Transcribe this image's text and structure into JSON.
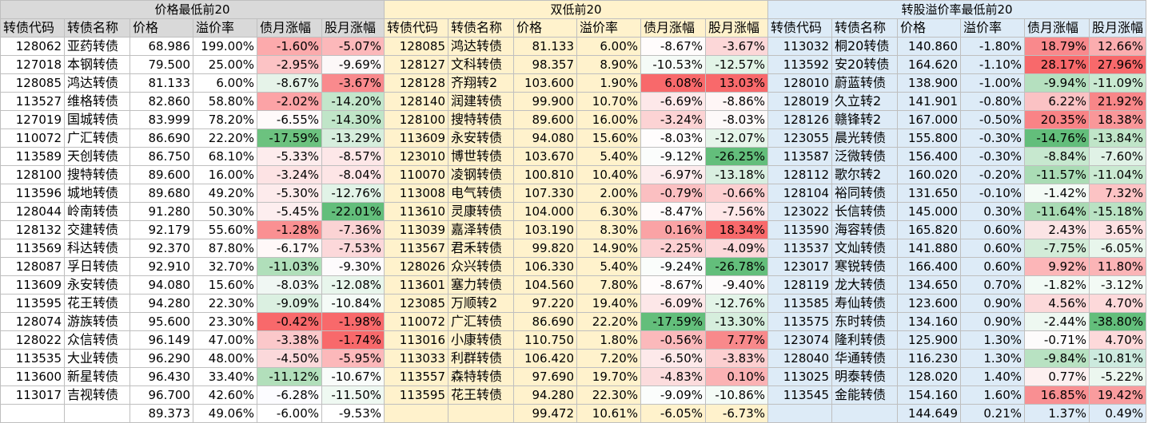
{
  "sections": [
    {
      "title": "价格最低前20"
    },
    {
      "title": "双低前20"
    },
    {
      "title": "转股溢价率最低前20"
    }
  ],
  "headers": [
    "转债代码",
    "转债名称",
    "价格",
    "溢价率",
    "债月涨幅",
    "股月涨幅"
  ],
  "colors": {
    "green_strong": "#63be7b",
    "red_strong": "#f8696b",
    "sec1_bg": "#d9d9d9",
    "sec2_bg": "#fff2cc",
    "sec3_bg": "#ddebf7"
  },
  "tables": [
    {
      "rows": [
        [
          "128062",
          "亚药转债",
          "68.986",
          "199.00%",
          "-1.60%",
          "-5.07%"
        ],
        [
          "127018",
          "本钢转债",
          "79.500",
          "25.00%",
          "-2.95%",
          "-9.69%"
        ],
        [
          "128085",
          "鸿达转债",
          "81.133",
          "6.00%",
          "-8.67%",
          "-3.67%"
        ],
        [
          "113527",
          "维格转债",
          "82.860",
          "58.80%",
          "-2.02%",
          "-14.20%"
        ],
        [
          "127019",
          "国城转债",
          "83.999",
          "78.20%",
          "-6.55%",
          "-14.30%"
        ],
        [
          "110072",
          "广汇转债",
          "86.690",
          "22.20%",
          "-17.59%",
          "-13.29%"
        ],
        [
          "113589",
          "天创转债",
          "86.750",
          "68.10%",
          "-5.33%",
          "-8.57%"
        ],
        [
          "128100",
          "搜特转债",
          "89.600",
          "16.00%",
          "-3.24%",
          "-8.04%"
        ],
        [
          "113596",
          "城地转债",
          "89.680",
          "49.20%",
          "-5.30%",
          "-12.76%"
        ],
        [
          "128044",
          "岭南转债",
          "91.280",
          "50.30%",
          "-5.45%",
          "-22.01%"
        ],
        [
          "128132",
          "交建转债",
          "92.179",
          "55.60%",
          "-1.28%",
          "-7.36%"
        ],
        [
          "113569",
          "科达转债",
          "92.370",
          "87.80%",
          "-6.17%",
          "-7.53%"
        ],
        [
          "128087",
          "孚日转债",
          "92.910",
          "32.70%",
          "-11.03%",
          "-9.30%"
        ],
        [
          "113609",
          "永安转债",
          "94.080",
          "15.60%",
          "-8.03%",
          "-12.08%"
        ],
        [
          "113595",
          "花王转债",
          "94.280",
          "22.30%",
          "-9.09%",
          "-10.84%"
        ],
        [
          "128074",
          "游族转债",
          "95.600",
          "23.30%",
          "-0.42%",
          "-1.98%"
        ],
        [
          "128022",
          "众信转债",
          "96.149",
          "47.00%",
          "-3.38%",
          "-1.74%"
        ],
        [
          "113535",
          "大业转债",
          "96.290",
          "48.00%",
          "-4.50%",
          "-5.95%"
        ],
        [
          "113600",
          "新星转债",
          "96.430",
          "33.40%",
          "-11.12%",
          "-10.67%"
        ],
        [
          "113017",
          "吉视转债",
          "96.700",
          "42.60%",
          "-6.28%",
          "-11.50%"
        ]
      ],
      "summary": [
        "",
        "",
        "89.373",
        "49.06%",
        "-6.00%",
        "-9.53%"
      ],
      "bond_colors": [
        "#fcaaac",
        "#fcc3c5",
        "#e6f3e9",
        "#fca3a6",
        "#fffafa",
        "#6cc27f",
        "#fdeced",
        "#fde3e4",
        "#fdebec",
        "#fdeeef",
        "#fa9092",
        "#fff8f8",
        "#b0dfba",
        "#f0f7f3",
        "#dbf0e1",
        "#f8696b",
        "#fbc8ca",
        "#fbd9db",
        "#b2dfbb",
        "#fcfcff"
      ],
      "stock_colors": [
        "#fcb8ba",
        "#fcf8f8",
        "#f98a8d",
        "#c3e6cb",
        "#c0e5c8",
        "#d6eedd",
        "#fde7e8",
        "#fde5e6",
        "#e1f3e7",
        "#63be7b",
        "#fbd3d4",
        "#fcd8da",
        "#fdfbfc",
        "#e8f6ec",
        "#f5fbf7",
        "#f8696b",
        "#f8696b",
        "#fcb8ba",
        "#f9fcfa",
        "#eff9f2"
      ]
    },
    {
      "rows": [
        [
          "128085",
          "鸿达转债",
          "81.133",
          "6.00%",
          "-8.67%",
          "-3.67%"
        ],
        [
          "128127",
          "文科转债",
          "98.357",
          "8.90%",
          "-10.53%",
          "-12.57%"
        ],
        [
          "128128",
          "齐翔转2",
          "103.600",
          "1.90%",
          "6.08%",
          "13.03%"
        ],
        [
          "128140",
          "润建转债",
          "99.900",
          "10.70%",
          "-6.69%",
          "-8.86%"
        ],
        [
          "128100",
          "搜特转债",
          "89.600",
          "16.00%",
          "-3.24%",
          "-8.03%"
        ],
        [
          "113609",
          "永安转债",
          "94.080",
          "15.60%",
          "-8.03%",
          "-12.07%"
        ],
        [
          "123010",
          "博世转债",
          "103.670",
          "5.40%",
          "-9.12%",
          "-26.25%"
        ],
        [
          "110070",
          "凌钢转债",
          "100.810",
          "10.40%",
          "-6.97%",
          "-13.18%"
        ],
        [
          "113008",
          "电气转债",
          "107.330",
          "2.00%",
          "-0.79%",
          "-0.66%"
        ],
        [
          "113610",
          "灵康转债",
          "104.000",
          "6.30%",
          "-8.47%",
          "-7.56%"
        ],
        [
          "113039",
          "嘉泽转债",
          "103.190",
          "8.30%",
          "0.16%",
          "18.34%"
        ],
        [
          "113567",
          "君禾转债",
          "99.820",
          "14.90%",
          "-2.25%",
          "-4.09%"
        ],
        [
          "128026",
          "众兴转债",
          "106.330",
          "5.40%",
          "-9.24%",
          "-26.78%"
        ],
        [
          "113601",
          "塞力转债",
          "104.560",
          "7.80%",
          "-8.67%",
          "-9.40%"
        ],
        [
          "123085",
          "万顺转2",
          "97.220",
          "19.40%",
          "-6.09%",
          "-12.76%"
        ],
        [
          "110072",
          "广汇转债",
          "86.690",
          "22.20%",
          "-17.59%",
          "-13.30%"
        ],
        [
          "113016",
          "小康转债",
          "110.750",
          "1.80%",
          "-0.56%",
          "7.77%"
        ],
        [
          "113033",
          "利群转债",
          "106.420",
          "7.20%",
          "-6.50%",
          "-3.83%"
        ],
        [
          "113557",
          "森特转债",
          "97.690",
          "19.70%",
          "-4.83%",
          "0.10%"
        ],
        [
          "113595",
          "花王转债",
          "94.280",
          "22.30%",
          "-9.09%",
          "-10.86%"
        ]
      ],
      "summary": [
        "",
        "",
        "99.472",
        "10.61%",
        "-6.05%",
        "-6.73%"
      ],
      "bond_colors": [
        "#fffcfc",
        "#f5fbf7",
        "#f8696b",
        "#fde8e9",
        "#fcd3d4",
        "#fffdfd",
        "#fbfdfc",
        "#fdeced",
        "#fbbfc1",
        "#fffbfb",
        "#faa3a5",
        "#fcd0d2",
        "#fafdfb",
        "#fffcfc",
        "#fde7e8",
        "#63be7b",
        "#fbb9bb",
        "#fde9ea",
        "#fcdcdd",
        "#fbfdfc"
      ],
      "stock_colors": [
        "#fcd7d8",
        "#e2f4e7",
        "#f8696b",
        "#fef6f6",
        "#fdf9f9",
        "#e6f5ea",
        "#63be7b",
        "#d9efe0",
        "#fccfd0",
        "#fee7e8",
        "#f8696b",
        "#fcd8da",
        "#63be7b",
        "#fdfbfb",
        "#e3f4e8",
        "#d6eedd",
        "#f8898b",
        "#fccfd0",
        "#fbb2b4",
        "#f4fbf6"
      ]
    },
    {
      "rows": [
        [
          "113032",
          "桐20转债",
          "140.860",
          "-1.80%",
          "18.79%",
          "12.66%"
        ],
        [
          "113592",
          "安20转债",
          "164.620",
          "-1.10%",
          "28.17%",
          "27.96%"
        ],
        [
          "128010",
          "蔚蓝转债",
          "138.900",
          "-1.00%",
          "-9.94%",
          "-11.09%"
        ],
        [
          "128019",
          "久立转2",
          "141.901",
          "-0.80%",
          "6.22%",
          "21.92%"
        ],
        [
          "128126",
          "赣锋转2",
          "167.000",
          "-0.50%",
          "20.35%",
          "18.38%"
        ],
        [
          "123055",
          "晨光转债",
          "155.800",
          "-0.30%",
          "-14.76%",
          "-13.84%"
        ],
        [
          "113587",
          "泛微转债",
          "156.400",
          "-0.30%",
          "-8.84%",
          "-7.60%"
        ],
        [
          "128112",
          "歌尔转2",
          "160.020",
          "-0.20%",
          "-11.57%",
          "-11.04%"
        ],
        [
          "128104",
          "裕同转债",
          "131.650",
          "-0.10%",
          "-1.42%",
          "7.32%"
        ],
        [
          "123022",
          "长信转债",
          "145.000",
          "0.30%",
          "-11.64%",
          "-15.18%"
        ],
        [
          "113590",
          "海容转债",
          "165.820",
          "0.60%",
          "2.43%",
          "3.65%"
        ],
        [
          "113537",
          "文灿转债",
          "141.880",
          "0.60%",
          "-7.75%",
          "-6.05%"
        ],
        [
          "123017",
          "寒锐转债",
          "166.400",
          "0.60%",
          "9.92%",
          "11.80%"
        ],
        [
          "128119",
          "龙大转债",
          "134.650",
          "0.70%",
          "-1.82%",
          "-3.12%"
        ],
        [
          "113585",
          "寿仙转债",
          "123.600",
          "0.90%",
          "4.56%",
          "4.70%"
        ],
        [
          "113575",
          "东时转债",
          "134.160",
          "0.90%",
          "-2.44%",
          "-38.80%"
        ],
        [
          "123074",
          "隆利转债",
          "125.900",
          "1.30%",
          "-0.71%",
          "4.70%"
        ],
        [
          "128040",
          "华通转债",
          "116.230",
          "1.30%",
          "-9.84%",
          "-10.81%"
        ],
        [
          "113025",
          "明泰转债",
          "128.020",
          "1.40%",
          "0.77%",
          "-5.22%"
        ],
        [
          "113545",
          "金能转债",
          "154.160",
          "1.60%",
          "16.85%",
          "19.42%"
        ]
      ],
      "summary": [
        "",
        "",
        "144.649",
        "0.21%",
        "1.37%",
        "0.49%"
      ],
      "bond_colors": [
        "#f9898c",
        "#f8696b",
        "#b5e0bf",
        "#fbc2c4",
        "#f98386",
        "#63be7b",
        "#c7e8cf",
        "#aadcb5",
        "#f4fbf6",
        "#a9dbb4",
        "#fbe4e5",
        "#d2ecd8",
        "#fcb6b8",
        "#f2faf5",
        "#fcd9da",
        "#eef8f1",
        "#fdfbfb",
        "#b8e2c2",
        "#fdf0f0",
        "#f98f92"
      ],
      "stock_colors": [
        "#fbadaf",
        "#f8696b",
        "#c9e9d1",
        "#f88688",
        "#f99799",
        "#c0e5c8",
        "#e0f2e6",
        "#caead2",
        "#fcc3c4",
        "#b9e2c3",
        "#fde1e2",
        "#e8f6ec",
        "#fbb4b6",
        "#f3faf5",
        "#fdd9da",
        "#63be7b",
        "#fdd9da",
        "#cceade",
        "#ecf7ef",
        "#f99c9e"
      ]
    }
  ]
}
